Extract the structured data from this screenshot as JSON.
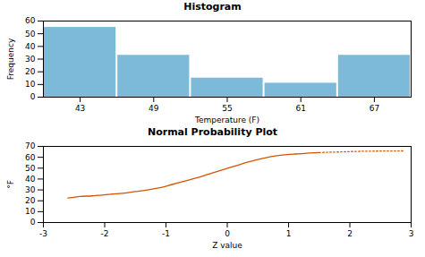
{
  "chart_data": [
    {
      "type": "histogram",
      "title": "Histogram",
      "xlabel": "Temperature (F)",
      "ylabel": "Frequency",
      "bins": [
        40,
        46,
        52,
        58,
        64,
        70
      ],
      "values": [
        55,
        33,
        15,
        11,
        33
      ],
      "color": "#7db9d8",
      "xlim": [
        40,
        70
      ],
      "xticks": [
        43,
        49,
        55,
        61,
        67
      ],
      "ylim": [
        0,
        60
      ],
      "yticks": [
        0,
        10,
        20,
        30,
        40,
        50,
        60
      ]
    },
    {
      "type": "line",
      "title": "Normal Probability Plot",
      "xlabel": "Z value",
      "ylabel": "°F",
      "color": "#d45500",
      "xlim": [
        -3,
        3
      ],
      "xticks": [
        -3,
        -2,
        -1,
        0,
        1,
        2,
        3
      ],
      "ylim": [
        0,
        70
      ],
      "yticks": [
        0,
        10,
        20,
        30,
        40,
        50,
        60,
        70
      ],
      "series": [
        {
          "line_style": "solid",
          "x": [
            -2.6,
            -2.4,
            -2.2,
            -2.1,
            -2.05,
            -2.0,
            -1.95,
            -1.9,
            -1.85,
            -1.8,
            -1.5,
            -1.3,
            -1.1,
            -0.9,
            -0.7,
            -0.5,
            -0.3,
            -0.1,
            0.1,
            0.3,
            0.5,
            0.7,
            0.9,
            1.1,
            1.3,
            1.5
          ],
          "values": [
            22.5,
            24.0,
            24.5,
            25.0,
            25.2,
            25.5,
            25.8,
            26.0,
            26.3,
            26.5,
            28.5,
            30.0,
            32.0,
            35.0,
            38.0,
            41.0,
            44.5,
            48.0,
            51.5,
            55.0,
            58.0,
            60.5,
            62.0,
            63.0,
            63.8,
            64.3
          ]
        },
        {
          "line_style": "dotted",
          "x": [
            1.5,
            1.7,
            1.9,
            2.0,
            2.1,
            2.2,
            2.3,
            2.5,
            2.7,
            2.9
          ],
          "values": [
            64.3,
            64.7,
            65.0,
            65.2,
            65.4,
            65.5,
            65.6,
            65.7,
            65.8,
            65.9
          ]
        }
      ]
    }
  ]
}
